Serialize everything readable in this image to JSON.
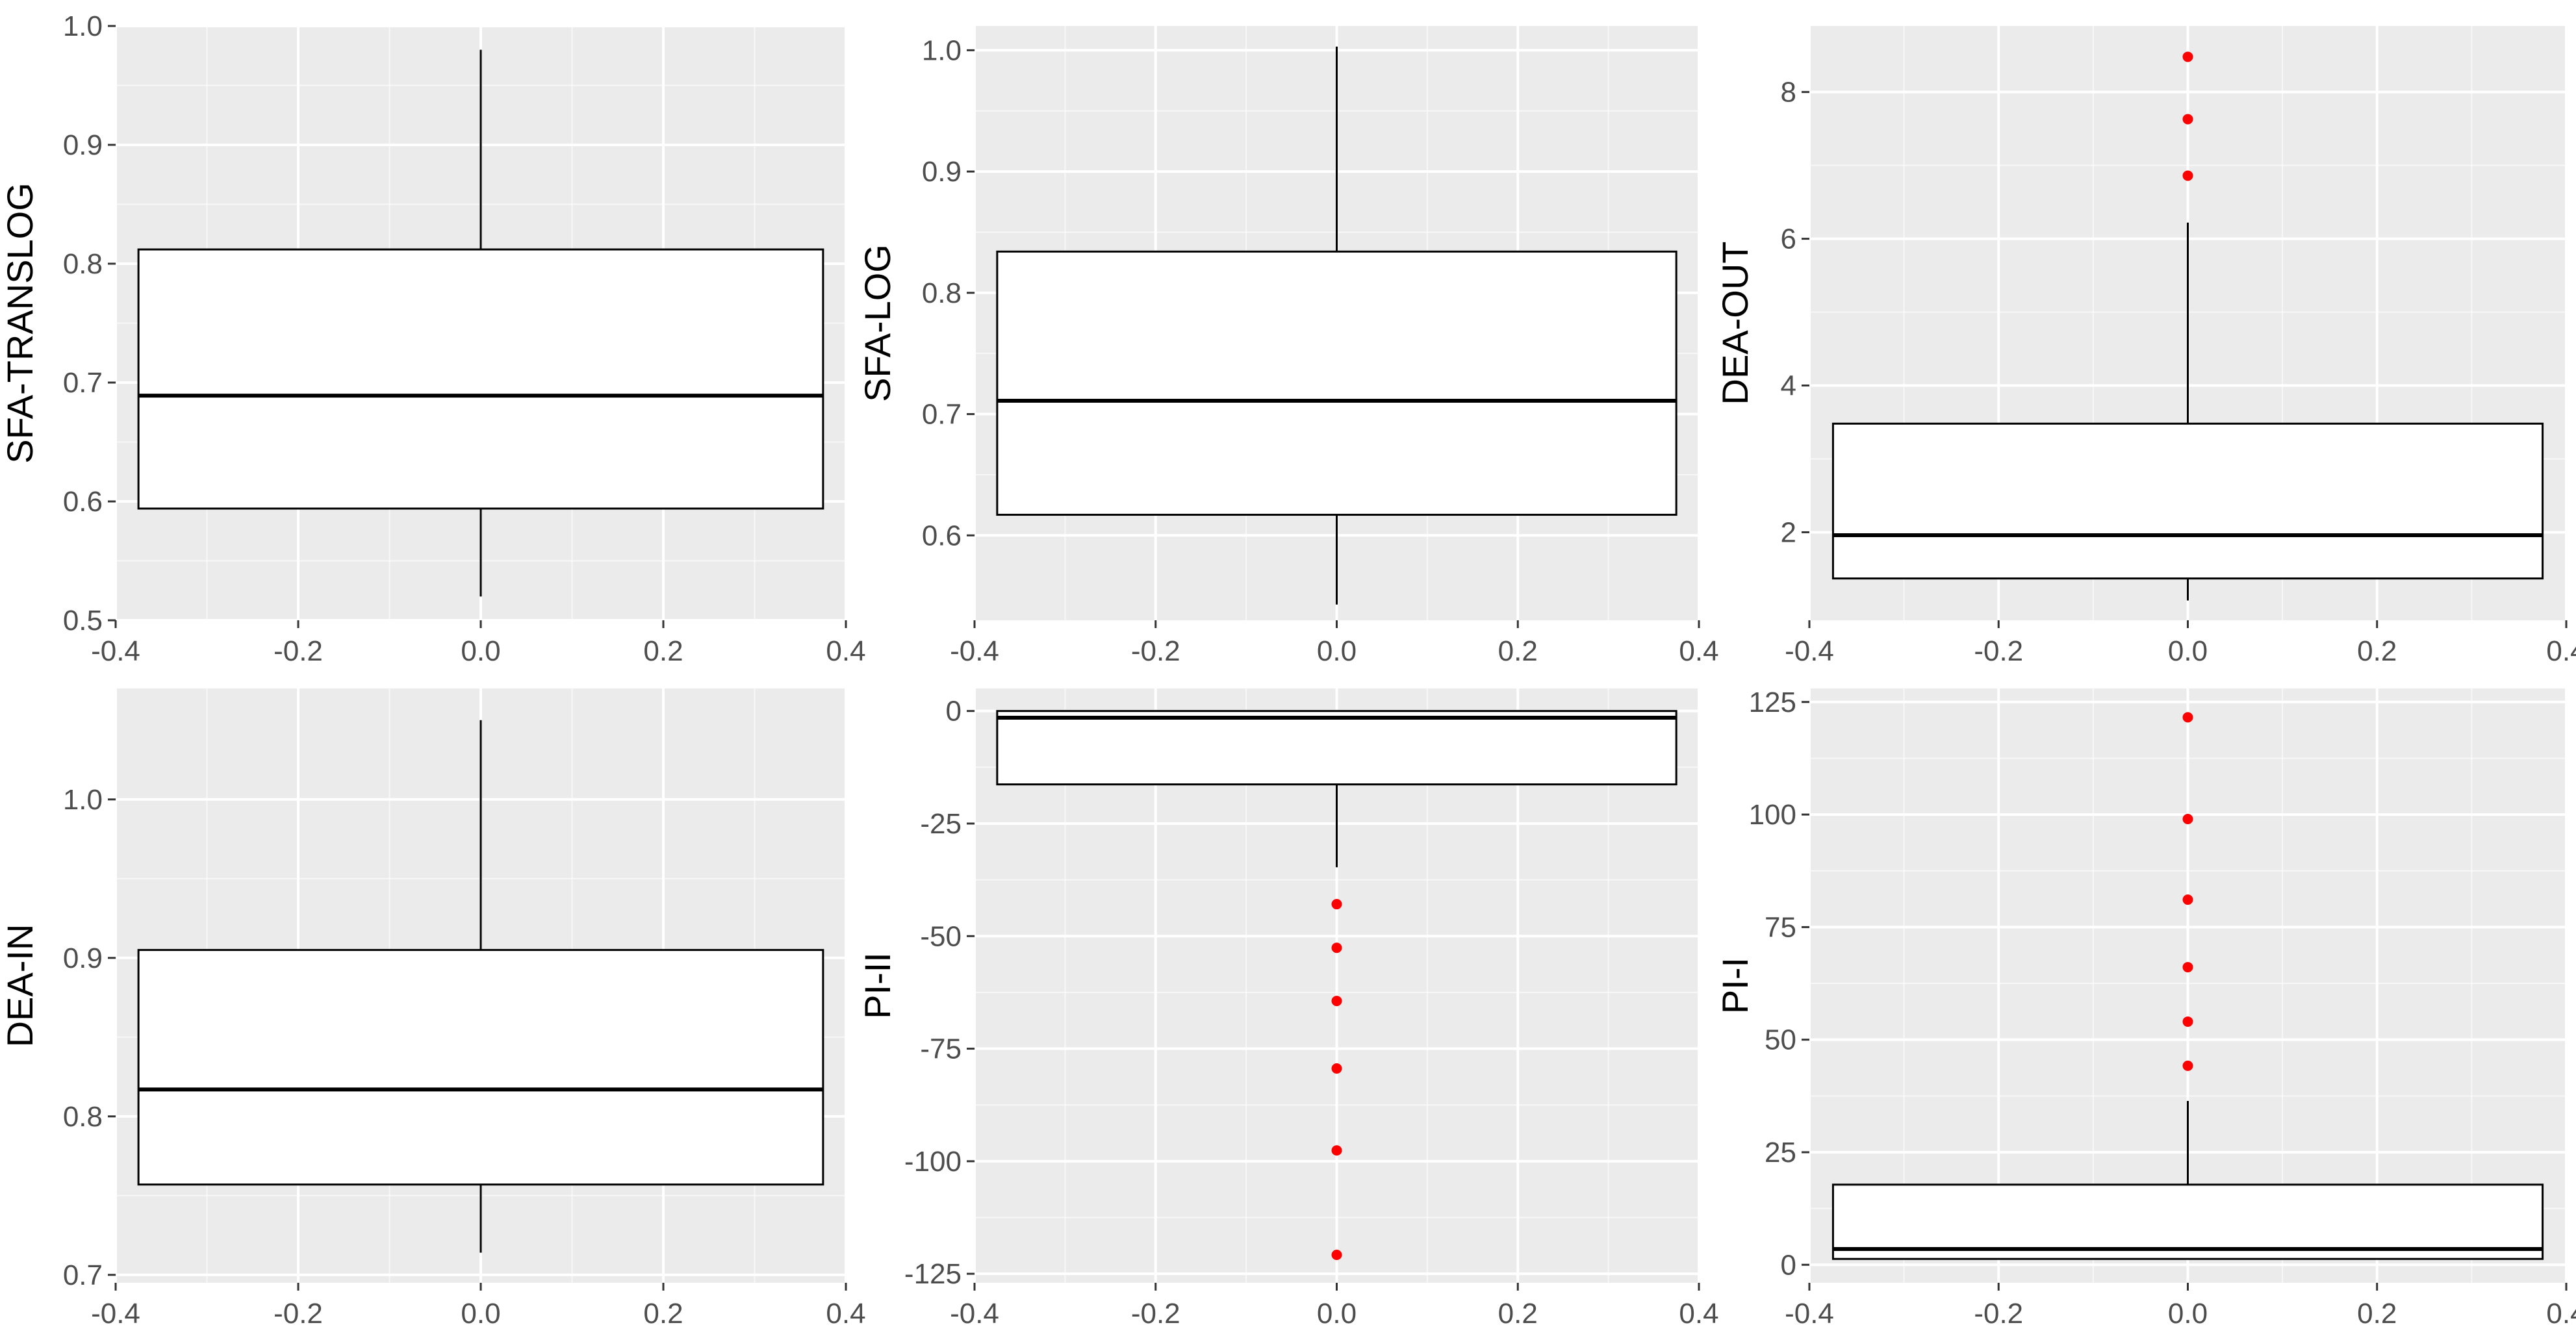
{
  "colors": {
    "panel_background": "#ebebeb",
    "grid_major": "#ffffff",
    "box_fill": "#ffffff",
    "box_stroke": "#000000",
    "outlier": "#ff0000",
    "tick_text": "#4d4d4d",
    "axis_title": "#000000"
  },
  "chart_data": [
    {
      "type": "box",
      "ylabel": "SFA-TRANSLOG",
      "xlim": [
        -0.4,
        0.4
      ],
      "ylim": [
        0.5,
        1.0
      ],
      "x_ticks": [
        "-0.4",
        "-0.2",
        "0.0",
        "0.2",
        "0.4"
      ],
      "y_ticks": [
        "0.5",
        "0.6",
        "0.7",
        "0.8",
        "0.9",
        "1.0"
      ],
      "box": {
        "lower_whisker": 0.52,
        "q1": 0.594,
        "median": 0.689,
        "q3": 0.812,
        "upper_whisker": 0.98
      },
      "outliers": [],
      "grid": true
    },
    {
      "type": "box",
      "ylabel": "SFA-LOG",
      "xlim": [
        -0.4,
        0.4
      ],
      "ylim": [
        0.53,
        1.02
      ],
      "x_ticks": [
        "-0.4",
        "-0.2",
        "0.0",
        "0.2",
        "0.4"
      ],
      "y_ticks": [
        "0.6",
        "0.7",
        "0.8",
        "0.9",
        "1.0"
      ],
      "box": {
        "lower_whisker": 0.543,
        "q1": 0.617,
        "median": 0.711,
        "q3": 0.834,
        "upper_whisker": 1.003
      },
      "outliers": [],
      "grid": true
    },
    {
      "type": "box",
      "ylabel": "DEA-OUT",
      "xlim": [
        -0.4,
        0.4
      ],
      "ylim": [
        0.8,
        8.9
      ],
      "x_ticks": [
        "-0.4",
        "-0.2",
        "0.0",
        "0.2",
        "0.4"
      ],
      "y_ticks": [
        "2",
        "4",
        "6",
        "8"
      ],
      "box": {
        "lower_whisker": 1.07,
        "q1": 1.37,
        "median": 1.96,
        "q3": 3.48,
        "upper_whisker": 6.22
      },
      "outliers": [
        6.86,
        7.63,
        8.48
      ],
      "grid": true
    },
    {
      "type": "box",
      "ylabel": "DEA-IN",
      "xlim": [
        -0.4,
        0.4
      ],
      "ylim": [
        0.695,
        1.07
      ],
      "x_ticks": [
        "-0.4",
        "-0.2",
        "0.0",
        "0.2",
        "0.4"
      ],
      "y_ticks": [
        "0.7",
        "0.8",
        "0.9",
        "1.0"
      ],
      "box": {
        "lower_whisker": 0.714,
        "q1": 0.757,
        "median": 0.817,
        "q3": 0.905,
        "upper_whisker": 1.05
      },
      "outliers": [],
      "grid": true
    },
    {
      "type": "box",
      "ylabel": "PI-II",
      "xlim": [
        -0.4,
        0.4
      ],
      "ylim": [
        -127,
        5
      ],
      "x_ticks": [
        "-0.4",
        "-0.2",
        "0.0",
        "0.2",
        "0.4"
      ],
      "y_ticks": [
        "0",
        "-25",
        "-50",
        "-75",
        "-100",
        "-125"
      ],
      "box": {
        "lower_whisker": -34.7,
        "q1": -16.3,
        "median": -1.5,
        "q3": 0,
        "upper_whisker": 0
      },
      "outliers": [
        -42.9,
        -52.6,
        -64.4,
        -79.4,
        -97.6,
        -120.8
      ],
      "grid": true
    },
    {
      "type": "box",
      "ylabel": "PI-I",
      "xlim": [
        -0.4,
        0.4
      ],
      "ylim": [
        -4,
        128
      ],
      "x_ticks": [
        "-0.4",
        "-0.2",
        "0.0",
        "0.2",
        "0.4"
      ],
      "y_ticks": [
        "0",
        "25",
        "50",
        "75",
        "100",
        "125"
      ],
      "box": {
        "lower_whisker": 1.3,
        "q1": 1.3,
        "median": 3.5,
        "q3": 17.8,
        "upper_whisker": 36.4
      },
      "outliers": [
        44.2,
        54.0,
        66.1,
        81.1,
        99.0,
        121.6
      ],
      "grid": true
    }
  ]
}
